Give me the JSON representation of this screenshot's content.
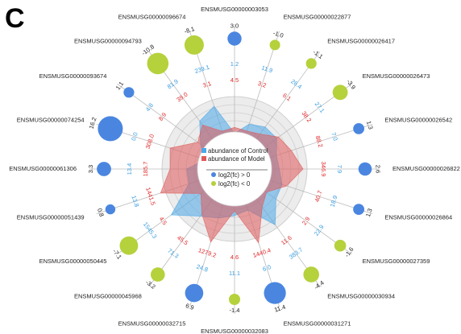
{
  "panel_label": "C",
  "colors": {
    "control": "#4aa8e8",
    "model": "#e05a5a",
    "up": "#4a86e0",
    "down": "#b5d13c",
    "grid": "#cfcfcf",
    "ring_fill": "#ececec"
  },
  "chart_data": {
    "type": "radar",
    "legend": {
      "control": "abundance of Control",
      "model": "abundance of Model",
      "up": "log2(fc) > 0",
      "down": "log2(fc) < 0"
    },
    "genes": [
      {
        "id": "ENSMUSG00000003053",
        "control": "1.2",
        "model": "4.5",
        "log2fc": "3.0",
        "dir": "up"
      },
      {
        "id": "ENSMUSG00000022877",
        "control": "11.9",
        "model": "3.2",
        "log2fc": "-1.0",
        "dir": "down"
      },
      {
        "id": "ENSMUSG00000026417",
        "control": "26.4",
        "model": "6.1",
        "log2fc": "-1.1",
        "dir": "down"
      },
      {
        "id": "ENSMUSG00000026473",
        "control": "27.1",
        "model": "38.2",
        "log2fc": "-3.9",
        "dir": "down"
      },
      {
        "id": "ENSMUSG00000026542",
        "control": "7.0",
        "model": "88.2",
        "log2fc": "1.3",
        "dir": "up"
      },
      {
        "id": "ENSMUSG00000026822",
        "control": "7.9",
        "model": "346.9",
        "log2fc": "2.6",
        "dir": "up"
      },
      {
        "id": "ENSMUSG00000026864",
        "control": "18.9",
        "model": "40.7",
        "log2fc": "1.3",
        "dir": "up"
      },
      {
        "id": "ENSMUSG00000027359",
        "control": "22.9",
        "model": "2.9",
        "log2fc": "-1.6",
        "dir": "down"
      },
      {
        "id": "ENSMUSG00000030934",
        "control": "383.7",
        "model": "11.6",
        "log2fc": "-4.4",
        "dir": "down"
      },
      {
        "id": "ENSMUSG00000031271",
        "control": "6.0",
        "model": "1440.4",
        "log2fc": "11.4",
        "dir": "up"
      },
      {
        "id": "ENSMUSG00000032083",
        "control": "11.1",
        "model": "4.6",
        "log2fc": "-1.4",
        "dir": "down"
      },
      {
        "id": "ENSMUSG00000032715",
        "control": "24.8",
        "model": "1279.2",
        "log2fc": "6.9",
        "dir": "up"
      },
      {
        "id": "ENSMUSG00000045968",
        "control": "71.3",
        "model": "45.5",
        "log2fc": "-3.2",
        "dir": "down"
      },
      {
        "id": "ENSMUSG00000050445",
        "control": "1545.3",
        "model": "4.5",
        "log2fc": "-7.1",
        "dir": "down"
      },
      {
        "id": "ENSMUSG00000051439",
        "control": "13.8",
        "model": "1441.5",
        "log2fc": "0.8",
        "dir": "up"
      },
      {
        "id": "ENSMUSG00000061306",
        "control": "13.4",
        "model": "185.7",
        "log2fc": "3.3",
        "dir": "up"
      },
      {
        "id": "ENSMUSG00000074254",
        "control": "0.0",
        "model": "308.0",
        "log2fc": "16.2",
        "dir": "up"
      },
      {
        "id": "ENSMUSG00000093674",
        "control": "4.8",
        "model": "8.9",
        "log2fc": "1.1",
        "dir": "up"
      },
      {
        "id": "ENSMUSG00000094793",
        "control": "81.9",
        "model": "39.0",
        "log2fc": "-10.8",
        "dir": "down"
      },
      {
        "id": "ENSMUSG00000096674",
        "control": "239.1",
        "model": "3.1",
        "log2fc": "-8.1",
        "dir": "down"
      }
    ]
  }
}
